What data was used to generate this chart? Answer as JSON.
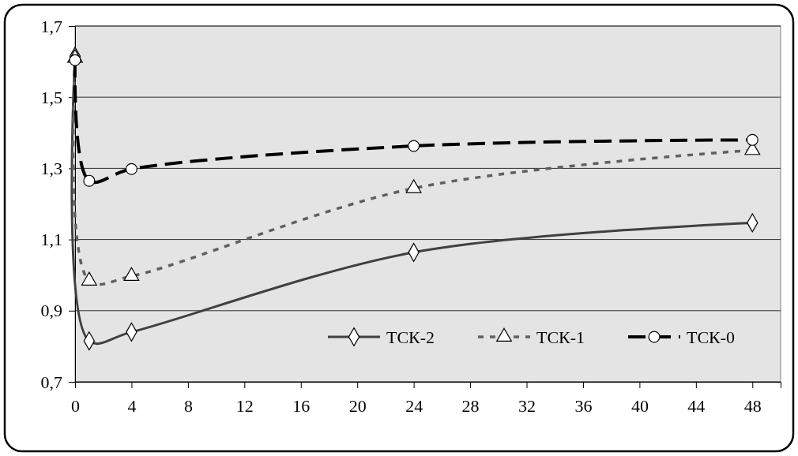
{
  "chart_data": {
    "type": "line",
    "x": [
      0,
      1,
      4,
      24,
      48
    ],
    "series": [
      {
        "name": "ТСК-2",
        "color": "#404040",
        "values": [
          1.615,
          0.815,
          0.84,
          1.064,
          1.147
        ],
        "marker": "diamond",
        "line_style": "solid"
      },
      {
        "name": "ТСК-1",
        "color": "#606060",
        "values": [
          1.61,
          0.984,
          0.997,
          1.244,
          1.351
        ],
        "marker": "triangle",
        "line_style": "dotted"
      },
      {
        "name": "ТСК-0",
        "color": "#000000",
        "values": [
          1.604,
          1.265,
          1.298,
          1.363,
          1.38
        ],
        "marker": "circle",
        "line_style": "dashed"
      }
    ],
    "xlim": [
      0,
      50
    ],
    "xticks": [
      0,
      4,
      8,
      12,
      16,
      20,
      24,
      28,
      32,
      36,
      40,
      44,
      48
    ],
    "ylim": [
      0.7,
      1.7
    ],
    "yticks": [
      {
        "value": 0.7,
        "label": "0,7"
      },
      {
        "value": 0.9,
        "label": "0,9"
      },
      {
        "value": 1.1,
        "label": "1,1"
      },
      {
        "value": 1.3,
        "label": "1,3"
      },
      {
        "value": 1.5,
        "label": "1,5"
      },
      {
        "value": 1.7,
        "label": "1,7"
      }
    ],
    "grid": "y",
    "legend": "bottom right"
  }
}
